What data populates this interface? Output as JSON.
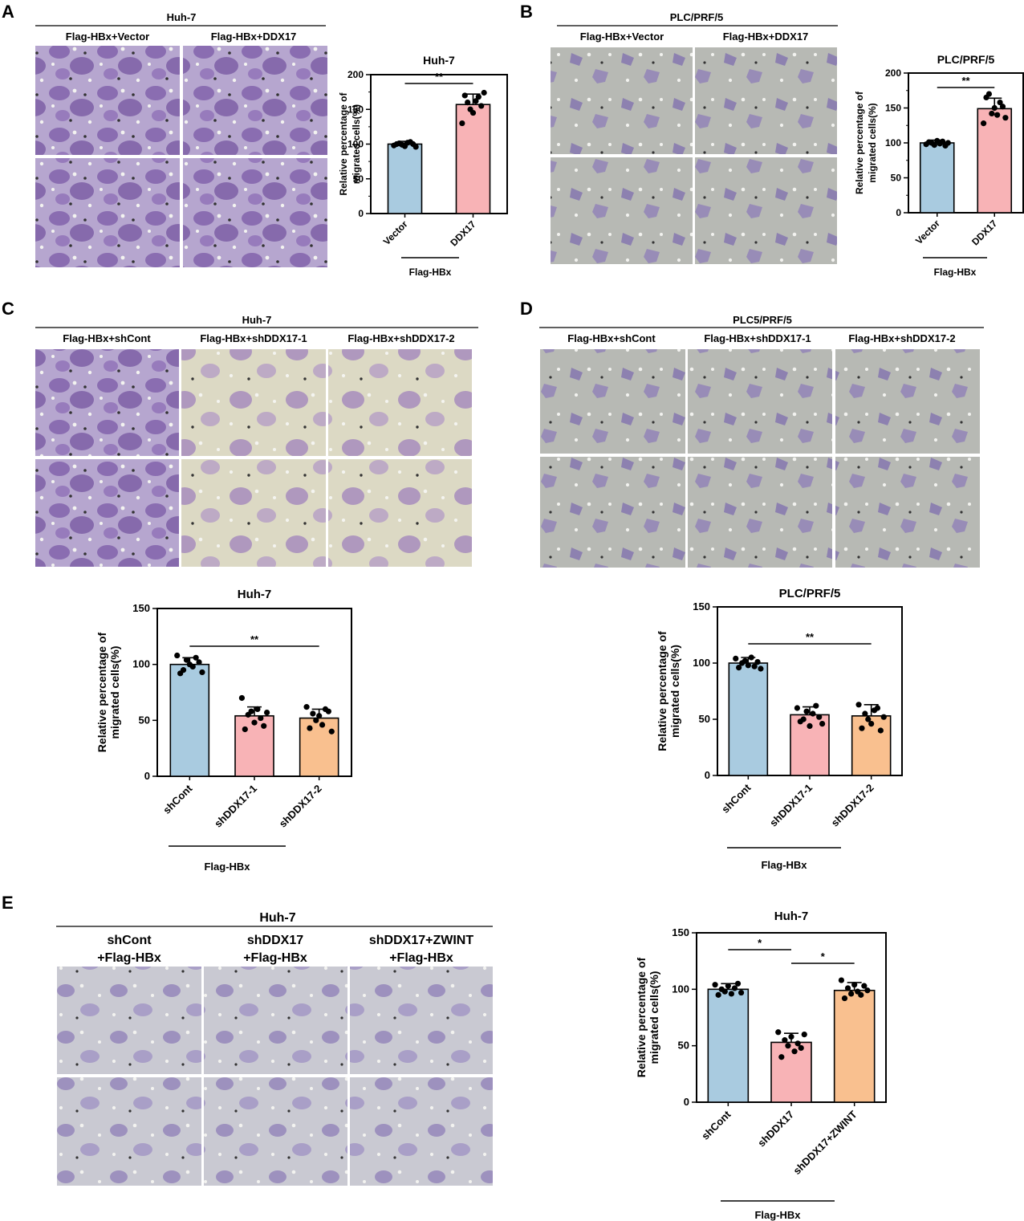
{
  "figure": {
    "panel_labels": [
      "A",
      "B",
      "C",
      "D",
      "E"
    ],
    "colors": {
      "vector": "#a9cbe0",
      "ddx17": "#f8b3b6",
      "shDDX17_2": "#f9c08f",
      "huh7_stain": "#9d7bbb",
      "plc_stain": "#9a9bba"
    }
  },
  "panels": {
    "A": {
      "header": "Huh-7",
      "columns": [
        "Flag-HBx+Vector",
        "Flag-HBx+DDX17"
      ]
    },
    "B": {
      "header": "PLC/PRF/5",
      "columns": [
        "Flag-HBx+Vector",
        "Flag-HBx+DDX17"
      ]
    },
    "C": {
      "header": "Huh-7",
      "columns": [
        "Flag-HBx+shCont",
        "Flag-HBx+shDDX17-1",
        "Flag-HBx+shDDX17-2"
      ]
    },
    "D": {
      "header": "PLC5/PRF/5",
      "columns": [
        "Flag-HBx+shCont",
        "Flag-HBx+shDDX17-1",
        "Flag-HBx+shDDX17-2"
      ]
    },
    "E": {
      "header": "Huh-7",
      "columns": [
        [
          "shCont",
          "+Flag-HBx"
        ],
        [
          "shDDX17",
          "+Flag-HBx"
        ],
        [
          "shDDX17+ZWINT",
          "+Flag-HBx"
        ]
      ]
    }
  },
  "chart_data": [
    {
      "id": "A",
      "type": "bar",
      "title": "Huh-7",
      "ylabel": [
        "Relative percentage of",
        "migrated cells(%)"
      ],
      "categories": [
        "Vector",
        "DDX17"
      ],
      "group_label": "Flag-HBx",
      "values": [
        100,
        157
      ],
      "errors": [
        4,
        15
      ],
      "points": [
        [
          98,
          100,
          101,
          99,
          97,
          102,
          103,
          100,
          96
        ],
        [
          130,
          170,
          160,
          150,
          145,
          162,
          168,
          155,
          174
        ]
      ],
      "colors": [
        "#a9cbe0",
        "#f8b3b6"
      ],
      "ylim": [
        0,
        200
      ],
      "yticks": [
        0,
        50,
        100,
        150,
        200
      ],
      "significance": [
        {
          "from": 0,
          "to": 1,
          "label": "**"
        }
      ]
    },
    {
      "id": "B",
      "type": "bar",
      "title": "PLC/PRF/5",
      "ylabel": [
        "Relative percentage of",
        "migrated cells(%)"
      ],
      "categories": [
        "Vector",
        "DDX17"
      ],
      "group_label": "Flag-HBx",
      "values": [
        100,
        149
      ],
      "errors": [
        4,
        15
      ],
      "points": [
        [
          98,
          101,
          100,
          97,
          103,
          99,
          102,
          96,
          100
        ],
        [
          128,
          165,
          170,
          142,
          150,
          140,
          158,
          152,
          136
        ]
      ],
      "colors": [
        "#a9cbe0",
        "#f8b3b6"
      ],
      "ylim": [
        0,
        200
      ],
      "yticks": [
        0,
        50,
        100,
        150,
        200
      ],
      "significance": [
        {
          "from": 0,
          "to": 1,
          "label": "**"
        }
      ]
    },
    {
      "id": "C",
      "type": "bar",
      "title": "Huh-7",
      "ylabel": [
        "Relative percentage of",
        "migrated cells(%)"
      ],
      "categories": [
        "shCont",
        "shDDX17-1",
        "shDDX17-2"
      ],
      "group_label": "Flag-HBx",
      "values": [
        100,
        54,
        52
      ],
      "errors": [
        6,
        8,
        8
      ],
      "points": [
        [
          108,
          92,
          95,
          104,
          100,
          98,
          106,
          102,
          93
        ],
        [
          70,
          42,
          55,
          58,
          48,
          60,
          52,
          45,
          57
        ],
        [
          62,
          43,
          56,
          50,
          54,
          46,
          60,
          58,
          40
        ]
      ],
      "colors": [
        "#a9cbe0",
        "#f8b3b6",
        "#f9c08f"
      ],
      "ylim": [
        0,
        150
      ],
      "yticks": [
        0,
        50,
        100,
        150
      ],
      "significance": [
        {
          "from": 0,
          "to": 2,
          "label": "**"
        }
      ]
    },
    {
      "id": "D",
      "type": "bar",
      "title": "PLC/PRF/5",
      "ylabel": [
        "Relative percentage of",
        "migrated cells(%)"
      ],
      "categories": [
        "shCont",
        "shDDX17-1",
        "shDDX17-2"
      ],
      "group_label": "Flag-HBx",
      "values": [
        100,
        54,
        53
      ],
      "errors": [
        5,
        7,
        10
      ],
      "points": [
        [
          104,
          96,
          100,
          102,
          98,
          105,
          97,
          101,
          95
        ],
        [
          60,
          48,
          50,
          57,
          44,
          55,
          62,
          52,
          46
        ],
        [
          63,
          42,
          55,
          50,
          46,
          58,
          60,
          40,
          52
        ]
      ],
      "colors": [
        "#a9cbe0",
        "#f8b3b6",
        "#f9c08f"
      ],
      "ylim": [
        0,
        150
      ],
      "yticks": [
        0,
        50,
        100,
        150
      ],
      "significance": [
        {
          "from": 0,
          "to": 2,
          "label": "**"
        }
      ]
    },
    {
      "id": "E",
      "type": "bar",
      "title": "Huh-7",
      "ylabel": [
        "Relative percentage of",
        "migrated cells(%)"
      ],
      "categories": [
        "shCont",
        "shDDX17",
        "shDDX17+ZWINT"
      ],
      "group_label": "Flag-HBx",
      "values": [
        100,
        53,
        99
      ],
      "errors": [
        5,
        8,
        7
      ],
      "points": [
        [
          104,
          95,
          100,
          98,
          103,
          96,
          101,
          105,
          97
        ],
        [
          62,
          40,
          55,
          50,
          58,
          45,
          52,
          48,
          60
        ],
        [
          108,
          92,
          101,
          96,
          104,
          98,
          95,
          103,
          99
        ]
      ],
      "colors": [
        "#a9cbe0",
        "#f8b3b6",
        "#f9c08f"
      ],
      "ylim": [
        0,
        150
      ],
      "yticks": [
        0,
        50,
        100,
        150
      ],
      "significance": [
        {
          "from": 0,
          "to": 1,
          "label": "*"
        },
        {
          "from": 1,
          "to": 2,
          "label": "*"
        }
      ]
    }
  ]
}
